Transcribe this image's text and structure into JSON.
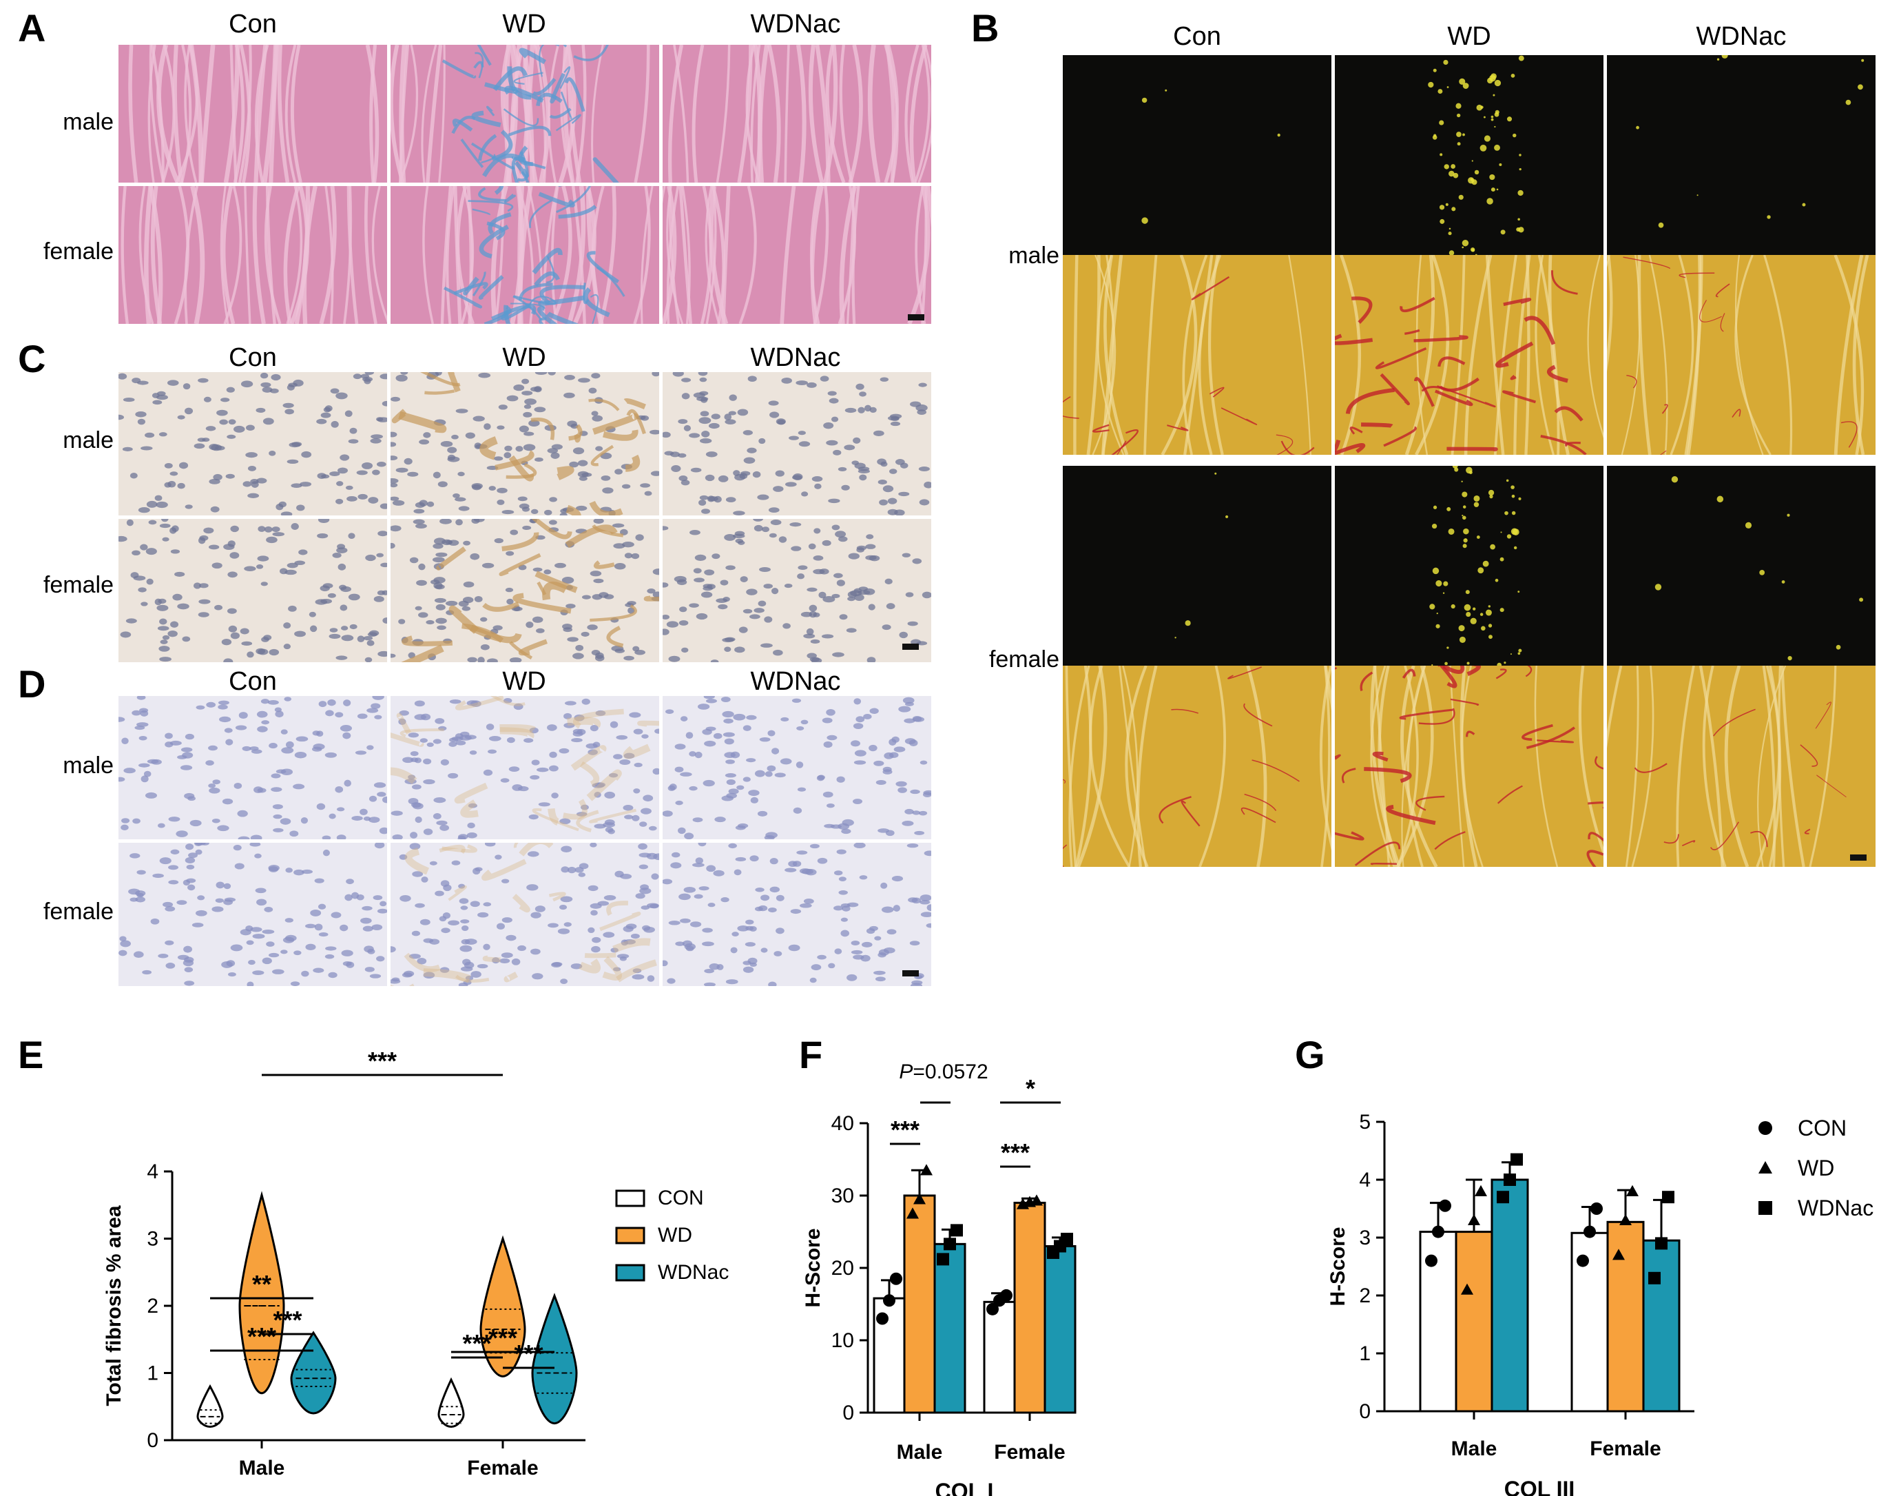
{
  "panels": {
    "A": {
      "label": "A",
      "columns": [
        "Con",
        "WD",
        "WDNac"
      ],
      "rows": [
        "male",
        "female"
      ],
      "colors": {
        "base": "#d98fb4",
        "light": "#edc2d8",
        "fiber": "#5b9bd0"
      }
    },
    "B": {
      "label": "B",
      "columns": [
        "Con",
        "WD",
        "WDNac"
      ],
      "rows": [
        "male",
        "female"
      ],
      "colors": {
        "dark": "#0c0c0a",
        "yellow": "#d7aa35",
        "red": "#c0212b",
        "glow": "#e8e13a"
      }
    },
    "C": {
      "label": "C",
      "columns": [
        "Con",
        "WD",
        "WDNac"
      ],
      "rows": [
        "male",
        "female"
      ],
      "colors": {
        "base": "#ece4dc",
        "nucleus": "#6f7596",
        "brown": "#c69a5c"
      }
    },
    "D": {
      "label": "D",
      "columns": [
        "Con",
        "WD",
        "WDNac"
      ],
      "rows": [
        "male",
        "female"
      ],
      "colors": {
        "base": "#eae9f2",
        "nucleus": "#8a90c2",
        "brown": "#d9b98a"
      }
    },
    "E": {
      "label": "E"
    },
    "F": {
      "label": "F"
    },
    "G": {
      "label": "G"
    }
  },
  "legend_groups": [
    "CON",
    "WD",
    "WDNac"
  ],
  "group_colors": {
    "CON": "#ffffff",
    "WD": "#f7a13c",
    "WDNac": "#1c97b0"
  },
  "chart_data": [
    {
      "id": "E",
      "type": "violin",
      "ylabel": "Total fibrosis % area",
      "xlabel": "",
      "ylim": [
        0,
        4
      ],
      "yticks": [
        "0",
        "1",
        "2",
        "3",
        "4"
      ],
      "categories": [
        "Male",
        "Female"
      ],
      "series": [
        {
          "name": "CON",
          "min": [
            0.2,
            0.2
          ],
          "max": [
            0.8,
            0.9
          ],
          "median": [
            0.35,
            0.38
          ],
          "q1": [
            0.25,
            0.25
          ],
          "q3": [
            0.45,
            0.5
          ]
        },
        {
          "name": "WD",
          "min": [
            0.7,
            0.95
          ],
          "max": [
            3.65,
            3.0
          ],
          "median": [
            2.0,
            1.65
          ],
          "q1": [
            1.2,
            1.3
          ],
          "q3": [
            2.0,
            1.95
          ]
        },
        {
          "name": "WDNac",
          "min": [
            0.4,
            0.25
          ],
          "max": [
            1.6,
            2.15
          ],
          "median": [
            0.92,
            1.0
          ],
          "q1": [
            0.8,
            0.7
          ],
          "q3": [
            1.05,
            1.3
          ]
        }
      ],
      "annotations": [
        "***",
        "**",
        "***",
        "***",
        "***",
        "***",
        "***"
      ]
    },
    {
      "id": "F",
      "type": "bar",
      "ylabel": "H-Score",
      "xlabel": "COL I",
      "ylim": [
        0,
        40
      ],
      "yticks": [
        "0",
        "10",
        "20",
        "30",
        "40"
      ],
      "categories": [
        "Male",
        "Female"
      ],
      "series": [
        {
          "name": "CON",
          "values": [
            15.8,
            15.3
          ],
          "sd": [
            2.5,
            1.2
          ],
          "points": [
            [
              13,
              15.5,
              18.5
            ],
            [
              14.3,
              15.5,
              16.2
            ]
          ]
        },
        {
          "name": "WD",
          "values": [
            30.0,
            29.0
          ],
          "sd": [
            3.5,
            0.6
          ],
          "points": [
            [
              27.5,
              29.5,
              33.5
            ],
            [
              28.8,
              29.1,
              29.3
            ]
          ]
        },
        {
          "name": "WDNac",
          "values": [
            23.3,
            23.0
          ],
          "sd": [
            2.0,
            1.2
          ],
          "points": [
            [
              21.2,
              23.3,
              25.2
            ],
            [
              22.1,
              23.0,
              24.0
            ]
          ]
        }
      ],
      "annotations": [
        "***",
        "P=0.0572",
        "***",
        "*"
      ]
    },
    {
      "id": "G",
      "type": "bar",
      "ylabel": "H-Score",
      "xlabel": "COL III",
      "ylim": [
        0,
        5
      ],
      "yticks": [
        "0",
        "1",
        "2",
        "3",
        "4",
        "5"
      ],
      "categories": [
        "Male",
        "Female"
      ],
      "series": [
        {
          "name": "CON",
          "values": [
            3.1,
            3.08
          ],
          "sd": [
            0.5,
            0.45
          ],
          "points": [
            [
              2.6,
              3.1,
              3.55
            ],
            [
              2.6,
              3.1,
              3.5
            ]
          ]
        },
        {
          "name": "WD",
          "values": [
            3.1,
            3.27
          ],
          "sd": [
            0.9,
            0.55
          ],
          "points": [
            [
              2.1,
              3.3,
              3.8
            ],
            [
              2.7,
              3.3,
              3.8
            ]
          ]
        },
        {
          "name": "WDNac",
          "values": [
            4.0,
            2.95
          ],
          "sd": [
            0.3,
            0.7
          ],
          "points": [
            [
              3.7,
              4.0,
              4.35
            ],
            [
              2.3,
              2.9,
              3.7
            ]
          ]
        }
      ],
      "annotations": []
    }
  ],
  "texts": {
    "pvalue_italic": "P",
    "pvalue_rest": "=0.0572",
    "legend_E": [
      "CON",
      "WD",
      "WDNac"
    ],
    "legend_G": [
      "CON",
      "WD",
      "WDNac"
    ]
  }
}
